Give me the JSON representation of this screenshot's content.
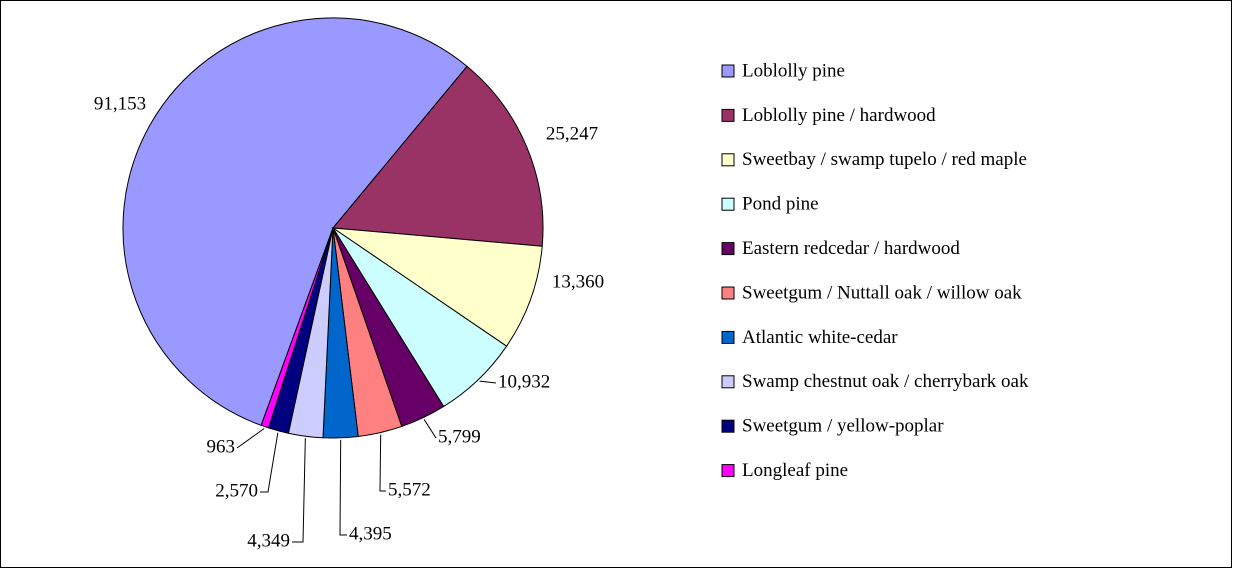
{
  "chart_data": {
    "type": "pie",
    "categories": [
      "Loblolly pine",
      "Loblolly pine / hardwood",
      "Sweetbay / swamp tupelo / red maple",
      "Pond pine",
      "Eastern redcedar / hardwood",
      "Sweetgum / Nuttall oak / willow oak",
      "Atlantic white-cedar",
      "Swamp chestnut oak / cherrybark oak",
      "Sweetgum / yellow-poplar",
      "Longleaf pine"
    ],
    "values": [
      91153,
      25247,
      13360,
      10932,
      5799,
      5572,
      4395,
      4349,
      2570,
      963
    ],
    "value_labels": [
      "91,153",
      "25,247",
      "13,360",
      "10,932",
      "5,799",
      "5,572",
      "4,395",
      "4,349",
      "2,570",
      "963"
    ],
    "colors": [
      "#9999ff",
      "#993366",
      "#ffffcc",
      "#ccffff",
      "#660066",
      "#ff8080",
      "#0066cc",
      "#ccccff",
      "#000080",
      "#ff00ff"
    ],
    "legend": "right"
  }
}
